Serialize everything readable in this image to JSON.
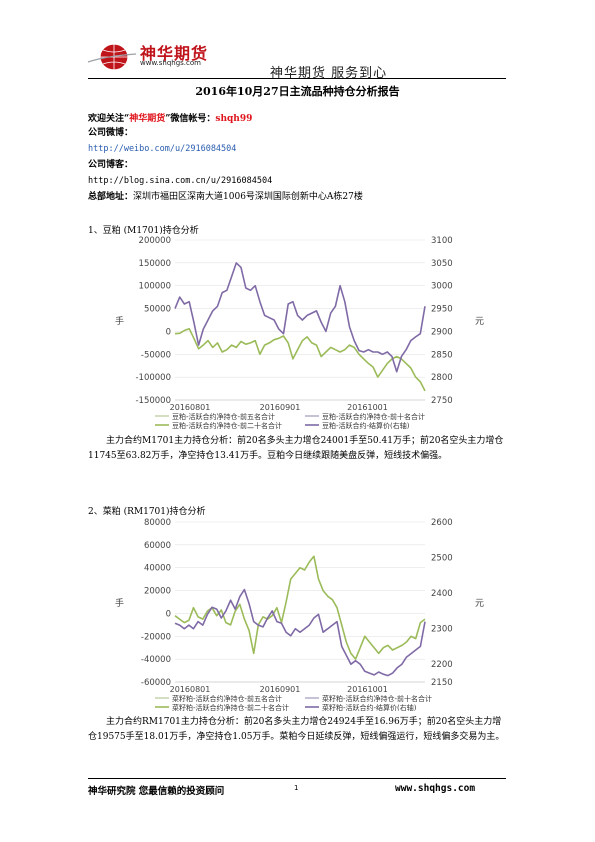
{
  "header": {
    "logo_text": "神华期货",
    "logo_url": "www.shqhgs.com",
    "slogan": "神华期货   服务到心"
  },
  "title": "2016年10月27日主流品种持仓分析报告",
  "contact": {
    "follow_prefix": "欢迎关注“",
    "follow_brand": "神华期货",
    "follow_suffix": "”微信帐号：",
    "wechat_id": "shqh99",
    "weibo_label": "公司微博：",
    "weibo_url": "http://weibo.com/u/2916084504",
    "blog_label": "公司博客：",
    "blog_url": "http://blog.sina.com.cn/u/2916084504",
    "address_label": "总部地址：",
    "address": "深圳市福田区深南大道1006号深圳国际创新中心A栋27楼"
  },
  "sections": [
    {
      "heading": "1、豆粕 (M1701)持仓分析",
      "paragraph": "主力合约M1701主力持仓分析：前20名多头主力增仓24001手至50.41万手；前20名空头主力增仓11745至63.82万手，净空持仓13.41万手。豆粕今日继续跟随美盘反弹，短线技术偏强。"
    },
    {
      "heading": "2、菜粕 (RM1701)持仓分析",
      "paragraph": "主力合约RM1701主力持仓分析：前20名多头主力增仓24924手至16.96万手；前20名空头主力增仓19575手至18.01万手，净空持仓1.05万手。菜粕今日延续反弹，短线偏强运行，短线偏多交易为主。"
    }
  ],
  "chart_data": [
    {
      "type": "line",
      "title": "",
      "ylabel": "手",
      "y2label": "元",
      "ylim": [
        -150000,
        200000
      ],
      "y2lim": [
        2750,
        3100
      ],
      "yticks": [
        "200000",
        "150000",
        "100000",
        "50000",
        "0",
        "-50000",
        "-100000",
        "-150000"
      ],
      "y2ticks": [
        "3100",
        "3050",
        "3000",
        "2950",
        "2900",
        "2850",
        "2800",
        "2750"
      ],
      "xticks": [
        "20160801",
        "20160901",
        "20161001"
      ],
      "legend": [
        "豆粕-活跃合约净持仓-前五名合计",
        "豆粕-活跃合约净持仓-前二十名合计",
        "豆粕-活跃合约净持仓-前十名合计",
        "豆粕-活跃合约-结算价(右轴)"
      ],
      "colors": {
        "net20": "#9bbb59",
        "price": "#7f6aa6"
      },
      "series": [
        {
          "name": "豆粕-活跃合约净持仓-前二十名合计",
          "axis": "left",
          "values": [
            -5000,
            -4000,
            2000,
            6000,
            -15000,
            -38000,
            -30000,
            -20000,
            -35000,
            -25000,
            -45000,
            -40000,
            -30000,
            -35000,
            -22000,
            -28000,
            -25000,
            -20000,
            -50000,
            -30000,
            -25000,
            -18000,
            -15000,
            -10000,
            -25000,
            -60000,
            -40000,
            -20000,
            -12000,
            -25000,
            -30000,
            -55000,
            -45000,
            -35000,
            -40000,
            -45000,
            -40000,
            -30000,
            -35000,
            -50000,
            -60000,
            -70000,
            -78000,
            -100000,
            -85000,
            -70000,
            -60000,
            -55000,
            -60000,
            -70000,
            -80000,
            -100000,
            -110000,
            -130000
          ]
        },
        {
          "name": "豆粕-活跃合约-结算价(右轴)",
          "axis": "right",
          "values": [
            2950,
            2975,
            2960,
            2965,
            2920,
            2870,
            2905,
            2925,
            2945,
            2955,
            2985,
            2990,
            3020,
            3050,
            3040,
            2995,
            2990,
            3000,
            2965,
            2935,
            2930,
            2925,
            2905,
            2895,
            2960,
            2965,
            2935,
            2925,
            2935,
            2940,
            2945,
            2920,
            2900,
            2940,
            2955,
            3000,
            2965,
            2910,
            2880,
            2858,
            2855,
            2860,
            2855,
            2855,
            2850,
            2855,
            2845,
            2812,
            2845,
            2860,
            2880,
            2888,
            2895,
            2955
          ]
        }
      ]
    },
    {
      "type": "line",
      "title": "",
      "ylabel": "手",
      "y2label": "元",
      "ylim": [
        -60000,
        80000
      ],
      "y2lim": [
        2150,
        2600
      ],
      "yticks": [
        "80000",
        "60000",
        "40000",
        "20000",
        "0",
        "-20000",
        "-40000",
        "-60000"
      ],
      "y2ticks": [
        "2600",
        "2500",
        "2400",
        "2300",
        "2200",
        "2150"
      ],
      "xticks": [
        "20160801",
        "20160901",
        "20161001"
      ],
      "legend": [
        "菜籽粕-活跃合约净持仓-前五名合计",
        "菜籽粕-活跃合约净持仓-前二十名合计",
        "菜籽粕-活跃合约净持仓-前十名合计",
        "菜籽粕-活跃合约-结算价(右轴)"
      ],
      "colors": {
        "net20": "#9bbb59",
        "price": "#7f6aa6"
      },
      "series": [
        {
          "name": "菜籽粕-活跃合约净持仓-前二十名合计",
          "axis": "left",
          "values": [
            -2000,
            -5000,
            -8000,
            -6000,
            5000,
            -3000,
            -5000,
            2000,
            5000,
            -2000,
            3000,
            -8000,
            -10000,
            2000,
            8000,
            -5000,
            -15000,
            -35000,
            -10000,
            -3000,
            -5000,
            -2000,
            5000,
            -8000,
            10000,
            30000,
            35000,
            40000,
            38000,
            45000,
            50000,
            30000,
            20000,
            15000,
            12000,
            5000,
            -10000,
            -25000,
            -35000,
            -40000,
            -30000,
            -20000,
            -25000,
            -30000,
            -35000,
            -30000,
            -28000,
            -32000,
            -30000,
            -28000,
            -25000,
            -20000,
            -22000,
            -8000,
            -5000
          ]
        },
        {
          "name": "菜籽粕-活跃合约-结算价(右轴)",
          "axis": "right",
          "values": [
            2315,
            2310,
            2300,
            2310,
            2300,
            2320,
            2310,
            2340,
            2360,
            2355,
            2330,
            2350,
            2380,
            2355,
            2390,
            2410,
            2370,
            2320,
            2310,
            2305,
            2330,
            2350,
            2320,
            2315,
            2290,
            2280,
            2300,
            2290,
            2300,
            2310,
            2330,
            2340,
            2290,
            2300,
            2310,
            2320,
            2250,
            2225,
            2200,
            2210,
            2200,
            2180,
            2175,
            2170,
            2178,
            2172,
            2168,
            2175,
            2190,
            2200,
            2220,
            2230,
            2240,
            2250,
            2320
          ]
        }
      ]
    }
  ],
  "footer": {
    "left": "神华研究院   您最信赖的投资顾问",
    "page": "1",
    "right": "www.shqhgs.com"
  }
}
